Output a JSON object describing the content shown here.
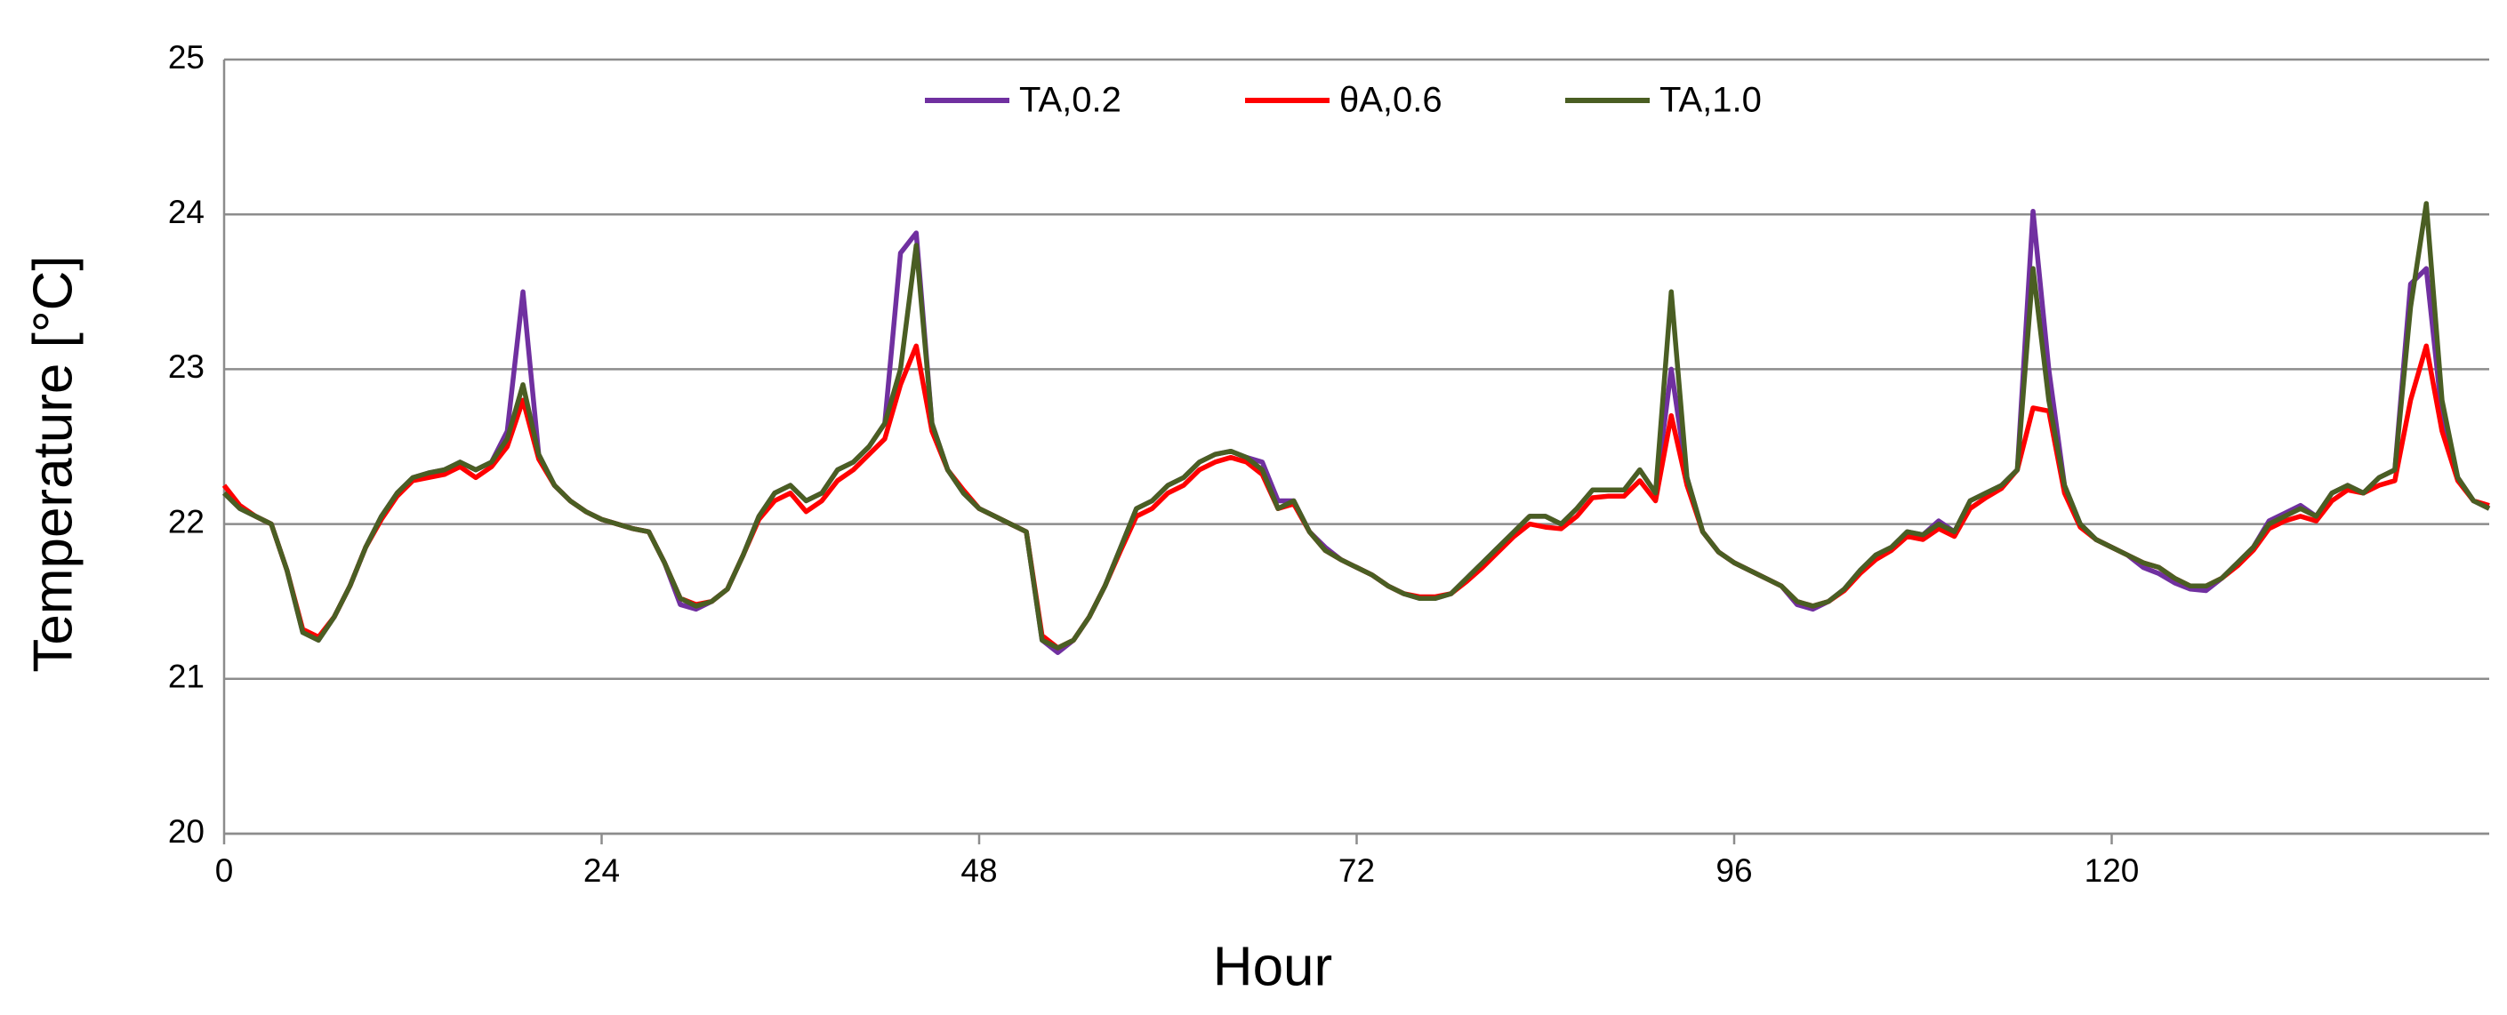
{
  "chart_data": {
    "type": "line",
    "ylabel": "Temperature [°C]",
    "xlabel": "Hour",
    "x": [
      0,
      1,
      2,
      3,
      4,
      5,
      6,
      7,
      8,
      9,
      10,
      11,
      12,
      13,
      14,
      15,
      16,
      17,
      18,
      19,
      20,
      21,
      22,
      23,
      24,
      25,
      26,
      27,
      28,
      29,
      30,
      31,
      32,
      33,
      34,
      35,
      36,
      37,
      38,
      39,
      40,
      41,
      42,
      43,
      44,
      45,
      46,
      47,
      48,
      49,
      50,
      51,
      52,
      53,
      54,
      55,
      56,
      57,
      58,
      59,
      60,
      61,
      62,
      63,
      64,
      65,
      66,
      67,
      68,
      69,
      70,
      71,
      72,
      73,
      74,
      75,
      76,
      77,
      78,
      79,
      80,
      81,
      82,
      83,
      84,
      85,
      86,
      87,
      88,
      89,
      90,
      91,
      92,
      93,
      94,
      95,
      96,
      97,
      98,
      99,
      100,
      101,
      102,
      103,
      104,
      105,
      106,
      107,
      108,
      109,
      110,
      111,
      112,
      113,
      114,
      115,
      116,
      117,
      118,
      119,
      120,
      121,
      122,
      123,
      124,
      125,
      126,
      127,
      128,
      129,
      130,
      131,
      132,
      133,
      134,
      135,
      136,
      137,
      138,
      139,
      140,
      141,
      142,
      143,
      144
    ],
    "series": [
      {
        "name": "TA,0.2",
        "color": "#7030a0",
        "values": [
          22.2,
          22.1,
          22.05,
          22.0,
          21.7,
          21.3,
          21.25,
          21.4,
          21.6,
          21.85,
          22.05,
          22.2,
          22.3,
          22.33,
          22.35,
          22.4,
          22.35,
          22.4,
          22.6,
          23.5,
          22.45,
          22.25,
          22.15,
          22.08,
          22.03,
          22.0,
          21.97,
          21.95,
          21.75,
          21.48,
          21.45,
          21.5,
          21.58,
          21.8,
          22.05,
          22.2,
          22.25,
          22.15,
          22.2,
          22.35,
          22.4,
          22.5,
          22.65,
          23.75,
          23.88,
          22.65,
          22.35,
          22.2,
          22.1,
          22.05,
          22.0,
          21.95,
          21.25,
          21.17,
          21.25,
          21.4,
          21.6,
          21.85,
          22.1,
          22.15,
          22.25,
          22.3,
          22.4,
          22.45,
          22.47,
          22.43,
          22.4,
          22.15,
          22.15,
          21.95,
          21.85,
          21.77,
          21.72,
          21.67,
          21.6,
          21.55,
          21.52,
          21.52,
          21.55,
          21.65,
          21.75,
          21.85,
          21.95,
          22.05,
          22.05,
          22.0,
          22.1,
          22.22,
          22.22,
          22.22,
          22.35,
          22.2,
          23.0,
          22.3,
          21.95,
          21.82,
          21.75,
          21.7,
          21.65,
          21.6,
          21.48,
          21.45,
          21.5,
          21.58,
          21.7,
          21.8,
          21.85,
          21.95,
          21.93,
          22.02,
          21.95,
          22.15,
          22.2,
          22.25,
          22.35,
          24.02,
          23.0,
          22.25,
          22.0,
          21.9,
          21.85,
          21.8,
          21.72,
          21.68,
          21.62,
          21.58,
          21.57,
          21.65,
          21.75,
          21.85,
          22.02,
          22.07,
          22.12,
          22.05,
          22.2,
          22.25,
          22.2,
          22.3,
          22.35,
          23.55,
          23.65,
          22.7,
          22.3,
          22.15,
          22.1
        ]
      },
      {
        "name": "θA,0.6",
        "color": "#ff0000",
        "values": [
          22.25,
          22.12,
          22.05,
          22.0,
          21.7,
          21.32,
          21.27,
          21.4,
          21.6,
          21.85,
          22.03,
          22.18,
          22.28,
          22.3,
          22.32,
          22.37,
          22.3,
          22.37,
          22.5,
          22.8,
          22.42,
          22.25,
          22.15,
          22.08,
          22.03,
          22.0,
          21.97,
          21.95,
          21.75,
          21.52,
          21.48,
          21.5,
          21.58,
          21.8,
          22.03,
          22.15,
          22.2,
          22.08,
          22.15,
          22.28,
          22.35,
          22.45,
          22.55,
          22.9,
          23.15,
          22.6,
          22.35,
          22.22,
          22.1,
          22.05,
          22.0,
          21.95,
          21.28,
          21.2,
          21.25,
          21.4,
          21.6,
          21.83,
          22.05,
          22.1,
          22.2,
          22.25,
          22.35,
          22.4,
          22.43,
          22.4,
          22.32,
          22.1,
          22.13,
          21.95,
          21.83,
          21.77,
          21.72,
          21.67,
          21.6,
          21.55,
          21.53,
          21.53,
          21.55,
          21.63,
          21.72,
          21.82,
          21.92,
          22.0,
          21.98,
          21.97,
          22.05,
          22.17,
          22.18,
          22.18,
          22.28,
          22.15,
          22.7,
          22.25,
          21.95,
          21.82,
          21.75,
          21.7,
          21.65,
          21.6,
          21.5,
          21.47,
          21.5,
          21.57,
          21.68,
          21.77,
          21.83,
          21.92,
          21.9,
          21.97,
          21.92,
          22.1,
          22.17,
          22.23,
          22.35,
          22.75,
          22.73,
          22.2,
          21.98,
          21.9,
          21.85,
          21.8,
          21.75,
          21.72,
          21.65,
          21.6,
          21.6,
          21.65,
          21.73,
          21.83,
          21.97,
          22.02,
          22.05,
          22.02,
          22.15,
          22.22,
          22.2,
          22.25,
          22.28,
          22.8,
          23.15,
          22.6,
          22.28,
          22.15,
          22.12
        ]
      },
      {
        "name": "TA,1.0",
        "color": "#4a5e23",
        "values": [
          22.2,
          22.1,
          22.05,
          22.0,
          21.7,
          21.3,
          21.25,
          21.4,
          21.6,
          21.85,
          22.05,
          22.2,
          22.3,
          22.33,
          22.35,
          22.4,
          22.35,
          22.4,
          22.55,
          22.9,
          22.45,
          22.25,
          22.15,
          22.08,
          22.03,
          22.0,
          21.97,
          21.95,
          21.75,
          21.52,
          21.47,
          21.5,
          21.58,
          21.8,
          22.05,
          22.2,
          22.25,
          22.15,
          22.2,
          22.35,
          22.4,
          22.5,
          22.65,
          23.0,
          23.8,
          22.65,
          22.35,
          22.2,
          22.1,
          22.05,
          22.0,
          21.95,
          21.25,
          21.2,
          21.25,
          21.4,
          21.6,
          21.85,
          22.1,
          22.15,
          22.25,
          22.3,
          22.4,
          22.45,
          22.47,
          22.43,
          22.35,
          22.1,
          22.15,
          21.95,
          21.83,
          21.77,
          21.72,
          21.67,
          21.6,
          21.55,
          21.52,
          21.52,
          21.55,
          21.65,
          21.75,
          21.85,
          21.95,
          22.05,
          22.05,
          22.0,
          22.1,
          22.22,
          22.22,
          22.22,
          22.35,
          22.2,
          23.5,
          22.3,
          21.95,
          21.82,
          21.75,
          21.7,
          21.65,
          21.6,
          21.5,
          21.47,
          21.5,
          21.58,
          21.7,
          21.8,
          21.85,
          21.95,
          21.93,
          22.0,
          21.95,
          22.15,
          22.2,
          22.25,
          22.35,
          23.65,
          22.8,
          22.25,
          22.0,
          21.9,
          21.85,
          21.8,
          21.75,
          21.72,
          21.65,
          21.6,
          21.6,
          21.65,
          21.75,
          21.85,
          22.0,
          22.05,
          22.1,
          22.05,
          22.2,
          22.25,
          22.2,
          22.3,
          22.35,
          23.4,
          24.07,
          22.8,
          22.3,
          22.15,
          22.1
        ]
      }
    ],
    "xlim": [
      0,
      144
    ],
    "xticks": [
      0,
      24,
      48,
      72,
      96,
      120
    ],
    "ylim": [
      20,
      25
    ],
    "yticks": [
      20,
      21,
      22,
      23,
      24,
      25
    ],
    "grid": true,
    "legend": "upper center"
  }
}
